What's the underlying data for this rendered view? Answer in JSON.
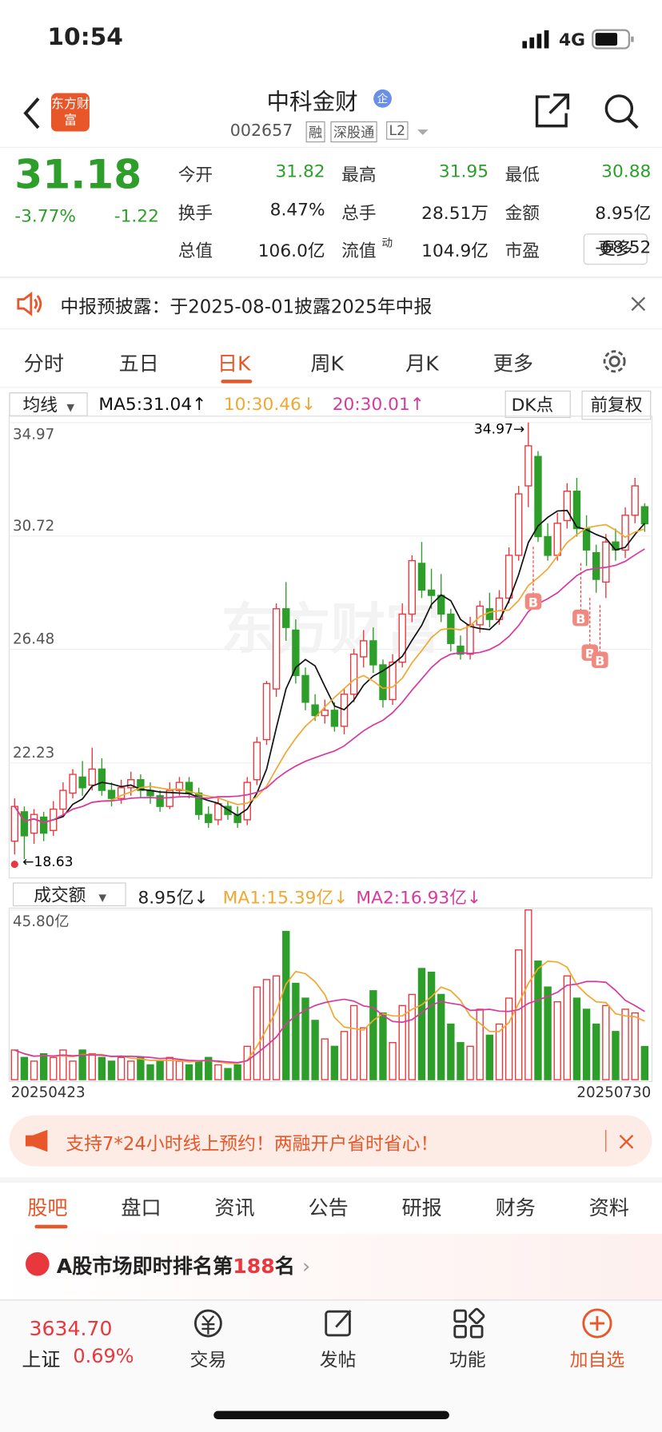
{
  "status_bar": {
    "time": "10:54",
    "network": "4G"
  },
  "header": {
    "logo": "东方财富",
    "title": "中科金财",
    "badge": "企",
    "code": "002657",
    "tags": [
      "融",
      "深股通",
      "L2"
    ]
  },
  "quote": {
    "price": "31.18",
    "change_pct": "-3.77%",
    "change": "-1.22",
    "fields": [
      [
        "今开",
        "31.82"
      ],
      [
        "最高",
        "31.95"
      ],
      [
        "最低",
        "30.88"
      ],
      [
        "换手",
        "8.47%"
      ],
      [
        "总手",
        "28.51万"
      ],
      [
        "金额",
        "8.95亿"
      ],
      [
        "总值",
        "106.0亿"
      ],
      [
        "流值",
        "104.9亿"
      ],
      [
        "市盈",
        "-68.52"
      ]
    ],
    "pe_sup": "动",
    "more": "更多"
  },
  "notice": "中报预披露：于2025-08-01披露2025年中报",
  "period_tabs": [
    "分时",
    "五日",
    "日K",
    "周K",
    "月K",
    "更多"
  ],
  "chart_header": {
    "indicator": "均线",
    "buttons": [
      "DK点",
      "前复权"
    ]
  },
  "buy_marker": "B",
  "volume_header": {
    "indicator": "成交额",
    "current": "8.95亿↓"
  },
  "chart_data": [
    {
      "type": "candlestick",
      "open": [
        19.3,
        20.4,
        19.6,
        20.2,
        19.7,
        20.5,
        21.1,
        21.7,
        21.4,
        22.0,
        21.2,
        20.9,
        21.3,
        21.6,
        21.2,
        21.0,
        20.6,
        21.2,
        21.5,
        21.1,
        20.3,
        20.1,
        20.6,
        20.3,
        20.1,
        21.6,
        23.1,
        25.0,
        28.0,
        27.2,
        25.5,
        24.4,
        24.0,
        24.2,
        23.6,
        24.8,
        26.2,
        26.8,
        25.9,
        24.6,
        26.0,
        27.8,
        29.7,
        28.7,
        28.5,
        27.8,
        26.6,
        26.3,
        27.4,
        28.0,
        27.6,
        28.4,
        30.0,
        32.6,
        33.7,
        30.7,
        30.0,
        31.3,
        32.4,
        31.0,
        30.1,
        29.0,
        30.5,
        30.2,
        31.5,
        31.82
      ],
      "high": [
        20.9,
        20.6,
        20.5,
        20.4,
        20.8,
        21.5,
        22.0,
        22.3,
        22.8,
        22.4,
        21.5,
        21.6,
        21.9,
        21.8,
        21.5,
        21.2,
        21.5,
        21.7,
        21.7,
        21.3,
        20.6,
        20.9,
        20.8,
        20.6,
        21.7,
        23.2,
        25.3,
        28.2,
        29.0,
        27.6,
        25.8,
        24.8,
        24.6,
        24.5,
        25.0,
        26.5,
        27.2,
        27.3,
        26.1,
        26.3,
        28.2,
        30.0,
        30.5,
        29.5,
        29.3,
        28.0,
        27.0,
        27.7,
        28.3,
        28.6,
        28.7,
        30.3,
        32.6,
        34.97,
        33.9,
        31.2,
        31.6,
        32.7,
        32.9,
        31.5,
        30.4,
        30.8,
        31.0,
        31.8,
        32.9,
        31.95
      ],
      "low": [
        18.8,
        18.63,
        19.2,
        19.3,
        19.5,
        20.2,
        20.9,
        21.0,
        21.2,
        21.0,
        20.6,
        20.7,
        21.0,
        20.9,
        20.7,
        20.4,
        20.5,
        21.0,
        20.9,
        20.1,
        19.8,
        19.9,
        20.1,
        19.8,
        19.9,
        21.4,
        22.9,
        24.7,
        26.8,
        25.2,
        24.2,
        23.8,
        23.7,
        23.4,
        23.3,
        24.5,
        25.8,
        25.6,
        24.3,
        24.4,
        25.8,
        27.5,
        28.4,
        28.0,
        27.5,
        26.4,
        26.1,
        26.1,
        27.1,
        27.3,
        27.4,
        28.2,
        29.8,
        31.8,
        30.5,
        29.8,
        29.8,
        31.0,
        30.7,
        29.6,
        28.6,
        28.4,
        29.8,
        29.9,
        31.2,
        30.88
      ],
      "close": [
        20.6,
        19.5,
        20.3,
        19.6,
        20.5,
        21.2,
        21.8,
        21.3,
        22.0,
        21.2,
        20.9,
        21.3,
        21.6,
        21.2,
        21.0,
        20.6,
        21.2,
        21.5,
        21.1,
        20.3,
        20.0,
        20.7,
        20.3,
        20.0,
        21.5,
        23.0,
        25.2,
        28.0,
        27.3,
        25.5,
        24.5,
        24.0,
        24.2,
        23.6,
        24.8,
        26.3,
        26.8,
        25.9,
        24.6,
        26.0,
        27.8,
        29.8,
        28.7,
        28.5,
        27.8,
        26.7,
        26.3,
        27.4,
        28.1,
        27.6,
        28.4,
        30.0,
        32.3,
        34.1,
        30.7,
        30.0,
        31.2,
        32.4,
        31.0,
        30.2,
        29.1,
        30.5,
        30.2,
        31.5,
        32.6,
        31.18
      ],
      "ylim": [
        17.99,
        34.97
      ],
      "yticks": [
        34.97,
        30.72,
        26.48,
        22.23
      ],
      "grid": true,
      "up_color": "#e8383d",
      "down_color": "#2e9e2a",
      "moving_averages": [
        {
          "label": "MA5:31.04↑",
          "period": 5,
          "color": "#111111"
        },
        {
          "label": "10:30.46↓",
          "period": 10,
          "color": "#f0a830"
        },
        {
          "label": "20:30.01↑",
          "period": 20,
          "color": "#d63aa0"
        }
      ],
      "annotations": {
        "high": "34.97→",
        "low": "←18.63"
      }
    },
    {
      "type": "bar",
      "values": [
        8,
        6,
        5,
        7,
        6,
        8,
        5,
        8,
        7,
        6,
        5,
        6,
        5,
        6,
        4,
        5,
        6,
        5,
        4,
        5,
        6,
        4,
        3,
        4,
        9,
        25,
        27,
        28,
        40,
        26,
        22,
        16,
        11,
        9,
        13,
        20,
        14,
        24,
        18,
        10,
        20,
        23,
        30,
        29,
        23,
        15,
        10,
        9,
        19,
        12,
        15,
        22,
        35,
        45.8,
        32,
        25,
        21,
        28,
        22,
        19,
        15,
        20,
        13,
        19,
        18,
        8.95
      ],
      "ylim": [
        0,
        45.8
      ],
      "yticks": [
        {
          "value": 45.8,
          "label": "45.80亿"
        }
      ],
      "x_labels": [
        "20250423",
        "20250730"
      ],
      "moving_averages": [
        {
          "label": "MA1:15.39亿↓",
          "period": 5,
          "color": "#f0a830"
        },
        {
          "label": "MA2:16.93亿↓",
          "period": 10,
          "color": "#d63aa0"
        }
      ]
    }
  ],
  "promo": "支持7*24小时线上预约！两融开户省时省心！",
  "section_tabs": [
    "股吧",
    "盘口",
    "资讯",
    "公告",
    "研报",
    "财务",
    "资料"
  ],
  "ranking": {
    "prefix": "A股市场即时排名第",
    "rank": "188",
    "suffix": "名"
  },
  "bottom_bar": {
    "index_value": "3634.70",
    "index_name": "上证",
    "index_change": "0.69%",
    "items": [
      "交易",
      "发帖",
      "功能",
      "加自选"
    ]
  }
}
